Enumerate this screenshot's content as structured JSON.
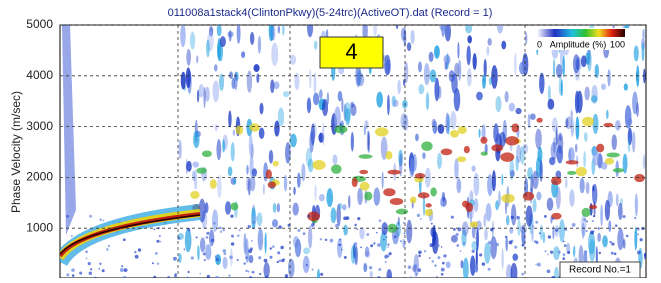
{
  "window": {
    "title": "011008a1stack4(ClintonPkwy)(5-24trc)(ActiveOT).dat (Record = 1)",
    "y_label": "Phase Velocity (m/sec)",
    "ylim": [
      0,
      5000
    ],
    "yticks": [
      1000,
      2000,
      3000,
      4000,
      5000
    ],
    "badge": "4",
    "colorbar": {
      "min_label": "0",
      "label": "Amplitude (%)",
      "max_label": "100"
    },
    "record_label": "Record No.=1"
  }
}
